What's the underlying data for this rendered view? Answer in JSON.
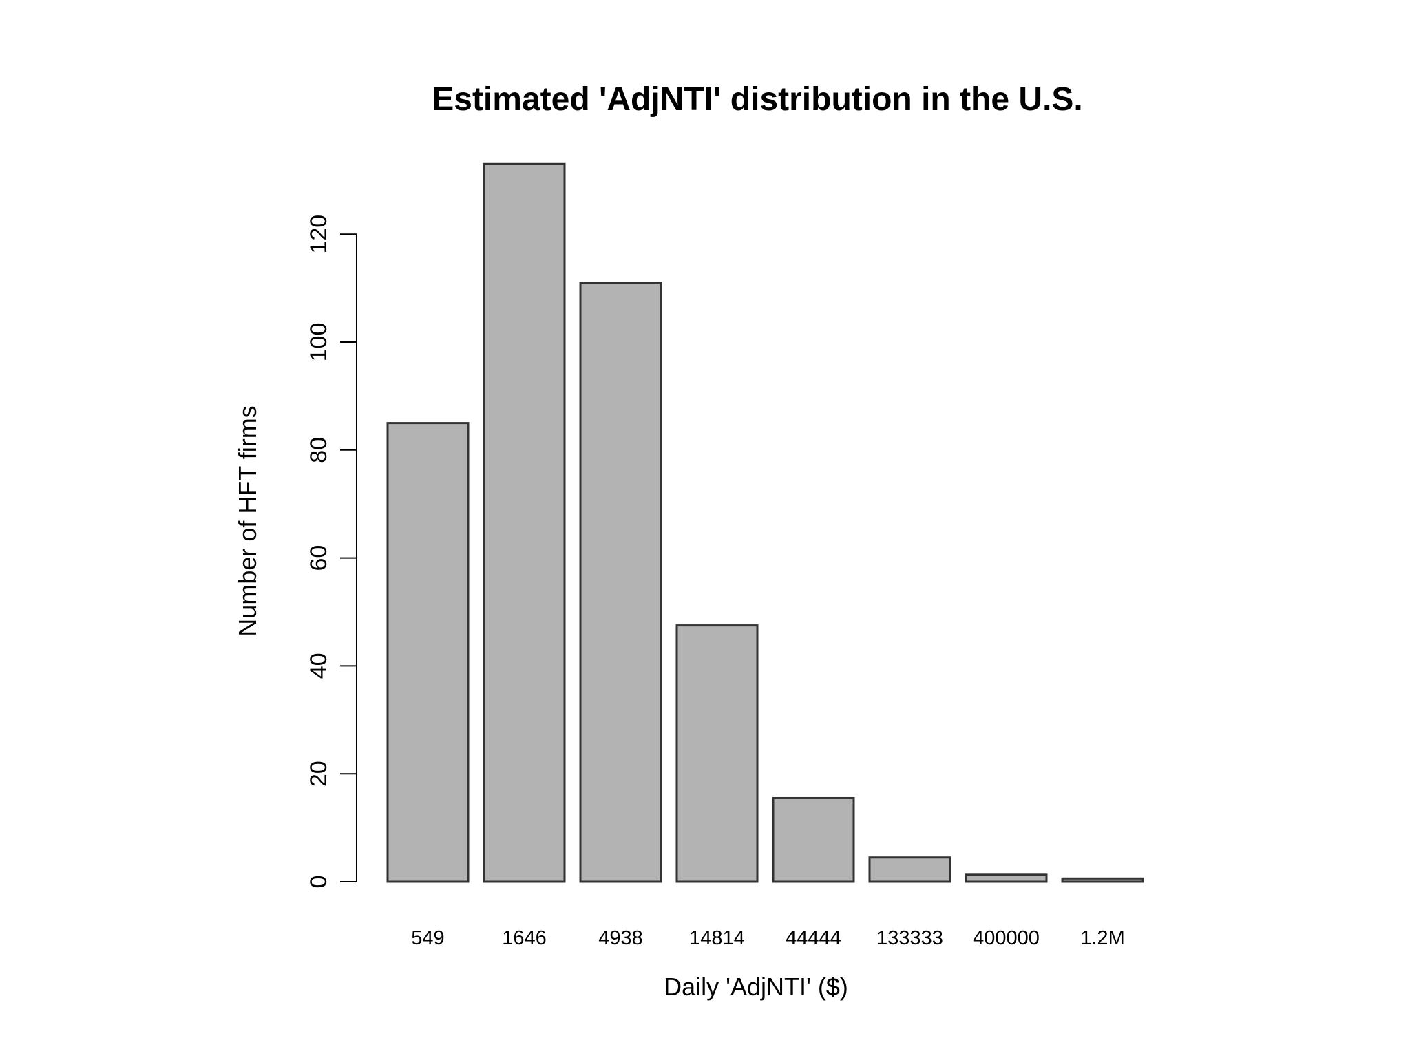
{
  "chart_data": {
    "type": "bar",
    "title": "Estimated 'AdjNTI' distribution in the U.S.",
    "xlabel": "Daily 'AdjNTI' ($)",
    "ylabel": "Number of HFT firms",
    "categories": [
      "549",
      "1646",
      "4938",
      "14814",
      "44444",
      "133333",
      "400000",
      "1.2M"
    ],
    "values": [
      85,
      133,
      111,
      47.5,
      15.5,
      4.5,
      1.3,
      0.6
    ],
    "ylim": [
      0,
      133
    ],
    "yticks": [
      0,
      20,
      40,
      60,
      80,
      100,
      120
    ],
    "grid": false,
    "legend": "none",
    "colors": {
      "bar_fill": "#b3b3b3",
      "bar_stroke": "#333333",
      "axis": "#000000"
    }
  }
}
